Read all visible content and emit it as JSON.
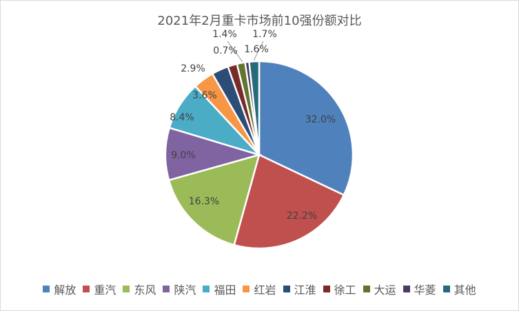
{
  "chart_data": {
    "type": "pie",
    "title": "2021年2月重卡市场前10强份额对比",
    "categories": [
      "解放",
      "重汽",
      "东风",
      "陕汽",
      "福田",
      "红岩",
      "江淮",
      "徐工",
      "大运",
      "华菱",
      "其他"
    ],
    "values": [
      32.0,
      22.2,
      16.3,
      9.0,
      8.4,
      3.6,
      2.9,
      1.6,
      1.4,
      0.7,
      1.7
    ],
    "labels": [
      "32.0%",
      "22.2%",
      "16.3%",
      "9.0%",
      "8.4%",
      "3.6%",
      "2.9%",
      "1.6%",
      "1.4%",
      "0.7%",
      "1.7%"
    ],
    "colors": [
      "#4f81bd",
      "#c0504d",
      "#9bbb59",
      "#8064a2",
      "#4bacc6",
      "#f79646",
      "#2c4d75",
      "#772c2a",
      "#5f7530",
      "#4d3b62",
      "#276a7c"
    ],
    "legend_position": "bottom",
    "start_angle": "12 o'clock, clockwise"
  },
  "title": "2021年2月重卡市场前10强份额对比",
  "legend": [
    {
      "label": "解放",
      "color": "#4f81bd"
    },
    {
      "label": "重汽",
      "color": "#c0504d"
    },
    {
      "label": "东风",
      "color": "#9bbb59"
    },
    {
      "label": "陕汽",
      "color": "#8064a2"
    },
    {
      "label": "福田",
      "color": "#4bacc6"
    },
    {
      "label": "红岩",
      "color": "#f79646"
    },
    {
      "label": "江淮",
      "color": "#2c4d75"
    },
    {
      "label": "徐工",
      "color": "#772c2a"
    },
    {
      "label": "大运",
      "color": "#5f7530"
    },
    {
      "label": "华菱",
      "color": "#4d3b62"
    },
    {
      "label": "其他",
      "color": "#276a7c"
    }
  ]
}
